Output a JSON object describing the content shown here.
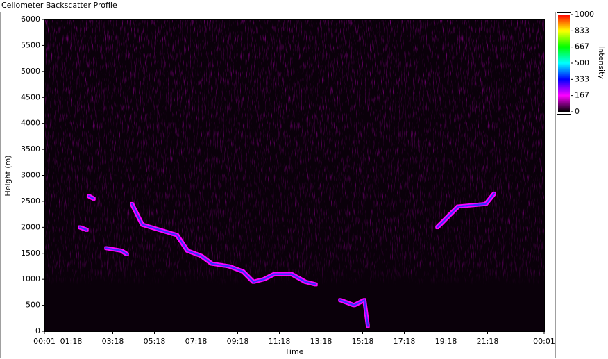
{
  "chart_data": {
    "type": "heatmap-profile",
    "title": "Ceilometer Backscatter Profile",
    "xlabel": "Time",
    "ylabel": "Height (m)",
    "colorbar_label": "Intensity",
    "xlim": [
      1,
      1441
    ],
    "xticks": [
      {
        "value": 1,
        "label": "00:01"
      },
      {
        "value": 78,
        "label": "01:18"
      },
      {
        "value": 198,
        "label": "03:18"
      },
      {
        "value": 318,
        "label": "05:18"
      },
      {
        "value": 438,
        "label": "07:18"
      },
      {
        "value": 558,
        "label": "09:18"
      },
      {
        "value": 678,
        "label": "11:18"
      },
      {
        "value": 798,
        "label": "13:18"
      },
      {
        "value": 918,
        "label": "15:18"
      },
      {
        "value": 1038,
        "label": "17:18"
      },
      {
        "value": 1158,
        "label": "19:18"
      },
      {
        "value": 1278,
        "label": "21:18"
      },
      {
        "value": 1441,
        "label": "00:01"
      }
    ],
    "ylim": [
      0,
      6000
    ],
    "yticks": [
      0,
      500,
      1000,
      1500,
      2000,
      2500,
      3000,
      3500,
      4000,
      4500,
      5000,
      5500,
      6000
    ],
    "clim": [
      0,
      1000
    ],
    "cticks": [
      0,
      167,
      333,
      500,
      667,
      833,
      1000
    ],
    "colorscale": [
      "#000000",
      "#ff00ff",
      "#0000ff",
      "#00ffff",
      "#00ff00",
      "#ffff00",
      "#ff0000"
    ],
    "x": [
      103,
      123,
      null,
      129,
      143,
      null,
      179,
      223,
      239,
      null,
      253,
      283,
      333,
      383,
      413,
      453,
      483,
      533,
      573,
      603,
      633,
      663,
      713,
      753,
      783,
      null,
      853,
      893,
      923,
      933,
      null,
      1133,
      1193,
      1273,
      1297
    ],
    "series": [
      {
        "color": "#3a2cff",
        "values": [
          2000,
          1950,
          null,
          2600,
          2550,
          null,
          1600,
          1550,
          1480,
          null,
          2450,
          2050,
          1950,
          1850,
          1550,
          1450,
          1300,
          1250,
          1150,
          950,
          1000,
          1100,
          1100,
          950,
          900,
          null,
          600,
          500,
          600,
          100,
          null,
          2000,
          2400,
          2450,
          2650
        ]
      }
    ]
  }
}
